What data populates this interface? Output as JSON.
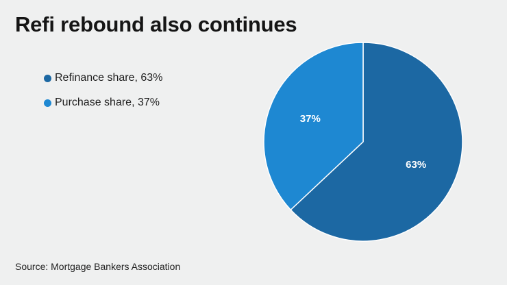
{
  "title": "Refi rebound also continues",
  "source": "Source: Mortgage Bankers Association",
  "colors": {
    "background": "#eff0f0",
    "refinance": "#1c68a3",
    "purchase": "#1e88d2"
  },
  "legend": [
    {
      "label": "Refinance share, 63%",
      "color": "#1c68a3"
    },
    {
      "label": "Purchase share, 37%",
      "color": "#1e88d2"
    }
  ],
  "chart_data": {
    "type": "pie",
    "title": "Refi rebound also continues",
    "categories": [
      "Refinance share",
      "Purchase share"
    ],
    "values": [
      63,
      37
    ],
    "unit": "%",
    "data_labels": [
      "63%",
      "37%"
    ],
    "colors": [
      "#1c68a3",
      "#1e88d2"
    ],
    "start_angle_deg": 0,
    "direction": "clockwise",
    "legend": "left"
  }
}
